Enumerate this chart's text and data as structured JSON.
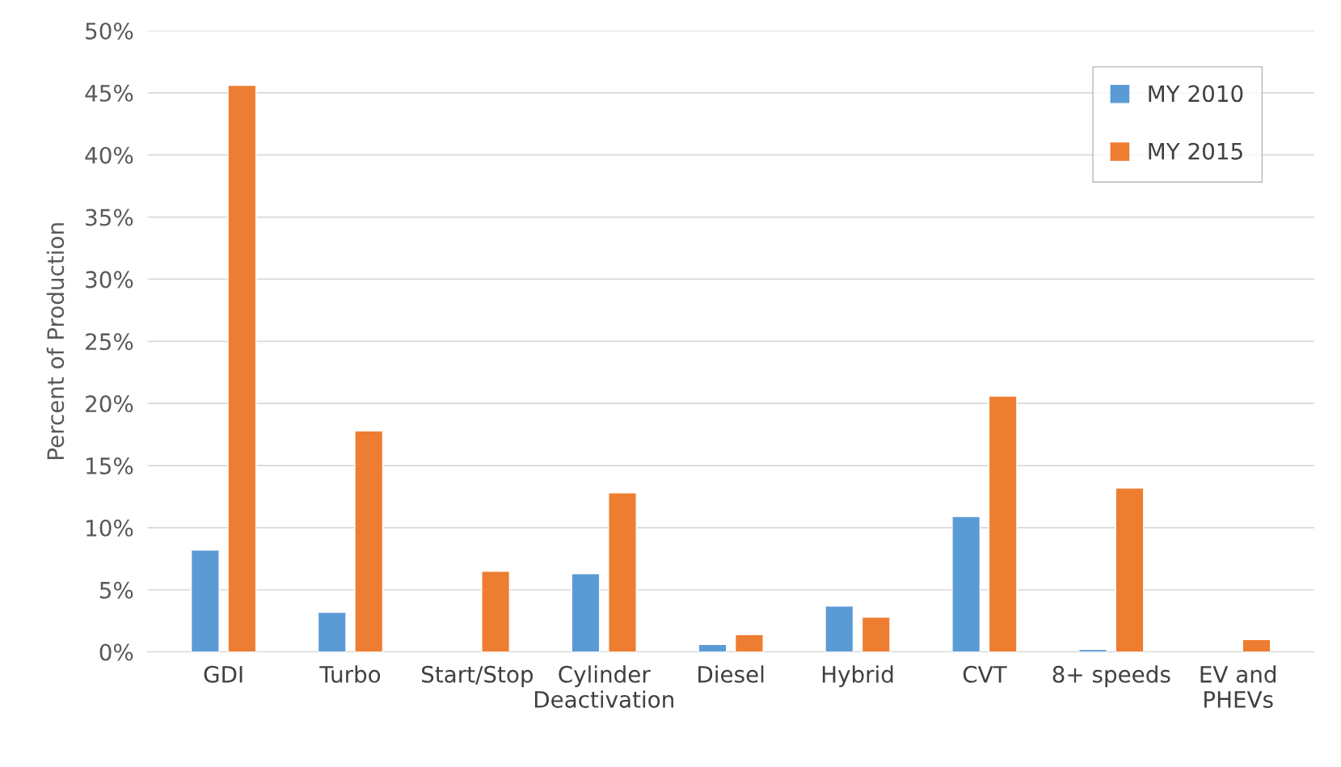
{
  "chart_data": {
    "type": "bar",
    "ylabel": "Percent of Production",
    "categories": [
      "GDI",
      "Turbo",
      "Start/Stop",
      "Cylinder\nDeactivation",
      "Diesel",
      "Hybrid",
      "CVT",
      "8+ speeds",
      "EV and\nPHEVs"
    ],
    "series": [
      {
        "name": "MY 2010",
        "color": "#5b9bd5",
        "values": [
          8.2,
          3.2,
          null,
          6.3,
          0.6,
          3.7,
          10.9,
          0.2,
          null
        ]
      },
      {
        "name": "MY 2015",
        "color": "#ed7d31",
        "values": [
          45.6,
          17.8,
          6.5,
          12.8,
          1.4,
          2.8,
          20.6,
          13.2,
          1.0
        ]
      }
    ],
    "ylim": [
      0,
      50
    ],
    "yticks": [
      {
        "value": 0,
        "label": "0%"
      },
      {
        "value": 5,
        "label": "5%"
      },
      {
        "value": 10,
        "label": "10%"
      },
      {
        "value": 15,
        "label": "15%"
      },
      {
        "value": 20,
        "label": "20%"
      },
      {
        "value": 25,
        "label": "25%"
      },
      {
        "value": 30,
        "label": "30%"
      },
      {
        "value": 35,
        "label": "35%"
      },
      {
        "value": 40,
        "label": "40%"
      },
      {
        "value": 45,
        "label": "45%"
      },
      {
        "value": 50,
        "label": "50%"
      }
    ],
    "grid": "y",
    "legend": "top right"
  }
}
